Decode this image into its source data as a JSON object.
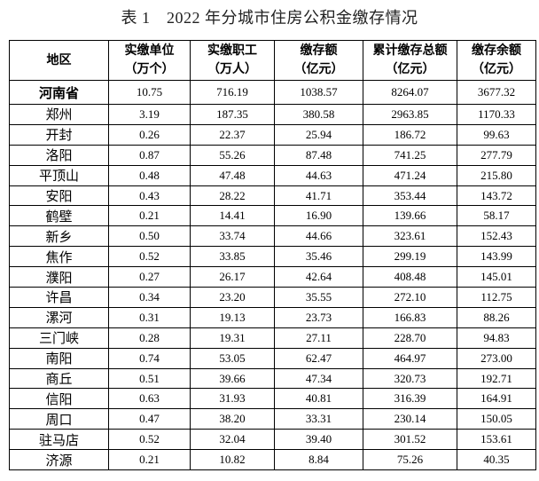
{
  "title": "表 1　2022 年分城市住房公积金缴存情况",
  "headers": [
    {
      "line1": "地区",
      "line2": ""
    },
    {
      "line1": "实缴单位",
      "line2": "（万个）"
    },
    {
      "line1": "实缴职工",
      "line2": "（万人）"
    },
    {
      "line1": "缴存额",
      "line2": "（亿元）"
    },
    {
      "line1": "累计缴存总额",
      "line2": "（亿元）"
    },
    {
      "line1": "缴存余额",
      "line2": "（亿元）"
    }
  ],
  "rows": [
    [
      "河南省",
      "10.75",
      "716.19",
      "1038.57",
      "8264.07",
      "3677.32"
    ],
    [
      "郑州",
      "3.19",
      "187.35",
      "380.58",
      "2963.85",
      "1170.33"
    ],
    [
      "开封",
      "0.26",
      "22.37",
      "25.94",
      "186.72",
      "99.63"
    ],
    [
      "洛阳",
      "0.87",
      "55.26",
      "87.48",
      "741.25",
      "277.79"
    ],
    [
      "平顶山",
      "0.48",
      "47.48",
      "44.63",
      "471.24",
      "215.80"
    ],
    [
      "安阳",
      "0.43",
      "28.22",
      "41.71",
      "353.44",
      "143.72"
    ],
    [
      "鹤壁",
      "0.21",
      "14.41",
      "16.90",
      "139.66",
      "58.17"
    ],
    [
      "新乡",
      "0.50",
      "33.74",
      "44.66",
      "323.61",
      "152.43"
    ],
    [
      "焦作",
      "0.52",
      "33.85",
      "35.46",
      "299.19",
      "143.99"
    ],
    [
      "濮阳",
      "0.27",
      "26.17",
      "42.64",
      "408.48",
      "145.01"
    ],
    [
      "许昌",
      "0.34",
      "23.20",
      "35.55",
      "272.10",
      "112.75"
    ],
    [
      "漯河",
      "0.31",
      "19.13",
      "23.73",
      "166.83",
      "88.26"
    ],
    [
      "三门峡",
      "0.28",
      "19.31",
      "27.11",
      "228.70",
      "94.83"
    ],
    [
      "南阳",
      "0.74",
      "53.05",
      "62.47",
      "464.97",
      "273.00"
    ],
    [
      "商丘",
      "0.51",
      "39.66",
      "47.34",
      "320.73",
      "192.71"
    ],
    [
      "信阳",
      "0.63",
      "31.93",
      "40.81",
      "316.39",
      "164.91"
    ],
    [
      "周口",
      "0.47",
      "38.20",
      "33.31",
      "230.14",
      "150.05"
    ],
    [
      "驻马店",
      "0.52",
      "32.04",
      "39.40",
      "301.52",
      "153.61"
    ],
    [
      "济源",
      "0.21",
      "10.82",
      "8.84",
      "75.26",
      "40.35"
    ]
  ]
}
